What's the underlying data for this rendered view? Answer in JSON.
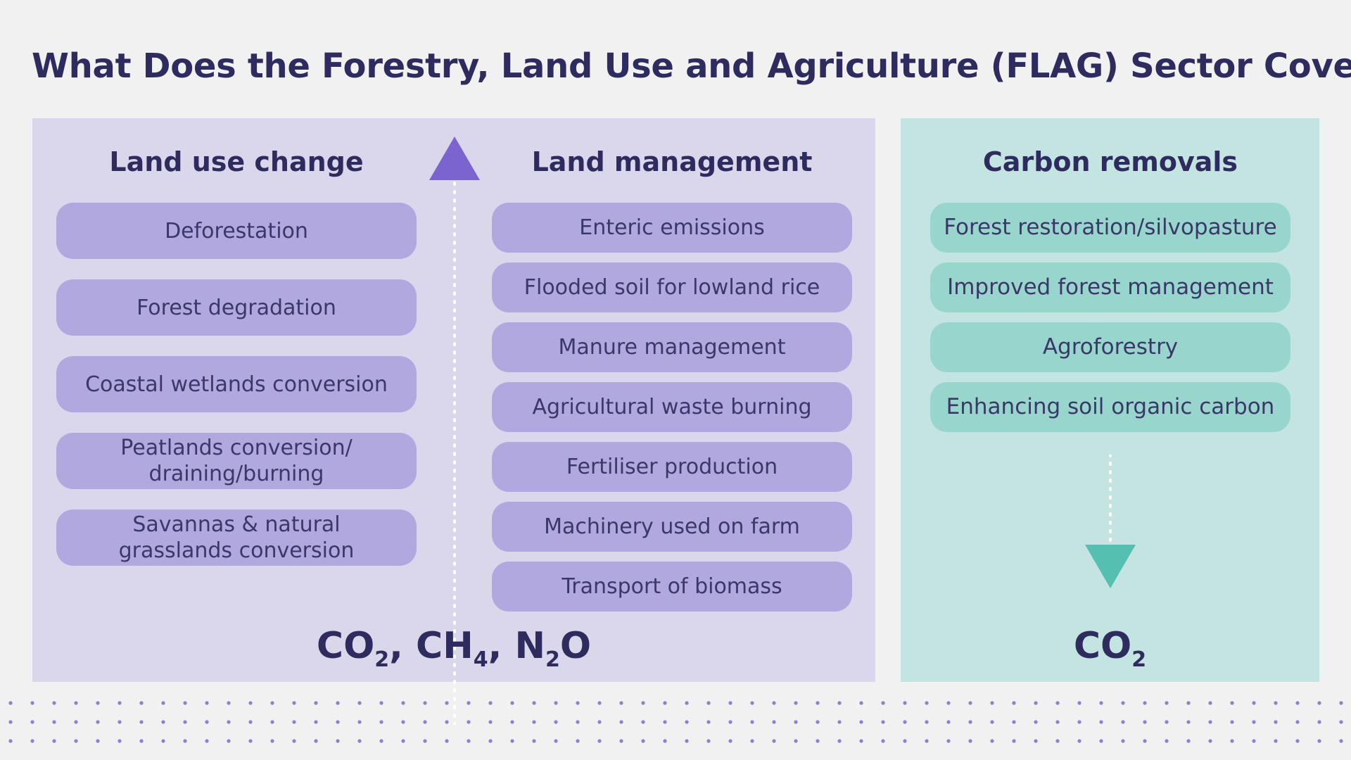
{
  "title": "What Does the Forestry, Land Use and Agriculture (FLAG) Sector Cover?",
  "land_use_change": {
    "heading": "Land use change",
    "items": [
      "Deforestation",
      "Forest degradation",
      "Coastal wetlands conversion",
      "Peatlands conversion/ draining/burning",
      "Savannas & natural grasslands conversion"
    ]
  },
  "land_management": {
    "heading": "Land management",
    "items": [
      "Enteric emissions",
      "Flooded soil for lowland rice",
      "Manure management",
      "Agricultural waste burning",
      "Fertiliser production",
      "Machinery used on farm",
      "Transport of biomass"
    ]
  },
  "carbon_removals": {
    "heading": "Carbon removals",
    "items": [
      "Forest restoration/silvopasture",
      "Improved forest management",
      "Agroforestry",
      "Enhancing soil organic carbon"
    ]
  },
  "emission_gases": {
    "g1": "CO",
    "g1_sub": "2",
    "sep1": ", ",
    "g2": "CH",
    "g2_sub": "4",
    "sep2": ", ",
    "g3": "N",
    "g3_sub": "2",
    "g3_tail": "O"
  },
  "removal_gas": {
    "g": "CO",
    "g_sub": "2"
  },
  "colors": {
    "title_text": "#2e2c5e",
    "emissions_panel": "#dad6ec",
    "emissions_pill": "#b1a8df",
    "emissions_arrow": "#7b64cf",
    "removals_panel": "#c4e4e1",
    "removals_pill": "#98d6cd",
    "removals_arrow": "#55c0b1",
    "dot_pattern": "#8a7fd0"
  },
  "icons": {
    "up_arrow": "triangle-up-arrow-icon",
    "down_arrow": "triangle-down-arrow-icon"
  }
}
